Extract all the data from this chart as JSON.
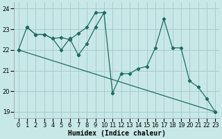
{
  "xlabel": "Humidex (Indice chaleur)",
  "bg_color": "#c8e8e8",
  "grid_color": "#a8cccc",
  "line_color": "#1e6b60",
  "xlim": [
    -0.5,
    23.5
  ],
  "ylim": [
    18.7,
    24.3
  ],
  "yticks": [
    19,
    20,
    21,
    22,
    23,
    24
  ],
  "xticks": [
    0,
    1,
    2,
    3,
    4,
    5,
    6,
    7,
    8,
    9,
    10,
    11,
    12,
    13,
    14,
    15,
    16,
    17,
    18,
    19,
    20,
    21,
    22,
    23
  ],
  "line1_x": [
    0,
    1,
    2,
    3,
    4,
    5,
    6,
    7,
    8,
    9,
    10
  ],
  "line1_y": [
    22.0,
    23.1,
    22.75,
    22.75,
    22.55,
    22.6,
    22.5,
    22.8,
    23.1,
    23.8,
    23.8
  ],
  "line2_x": [
    1,
    2,
    3,
    4,
    5,
    6,
    7
  ],
  "line2_y": [
    23.1,
    22.75,
    22.75,
    22.55,
    22.0,
    22.55,
    21.75
  ],
  "line3_x": [
    7,
    8,
    9,
    10,
    11,
    12,
    13,
    14,
    15,
    16,
    17,
    18,
    19,
    20,
    21,
    22,
    23
  ],
  "line3_y": [
    21.75,
    22.3,
    23.1,
    23.8,
    19.9,
    20.85,
    20.85,
    21.1,
    21.2,
    22.1,
    23.5,
    22.1,
    22.1,
    20.5,
    20.2,
    19.65,
    19.0
  ],
  "line4_x": [
    0,
    23
  ],
  "line4_y": [
    22.0,
    19.0
  ]
}
